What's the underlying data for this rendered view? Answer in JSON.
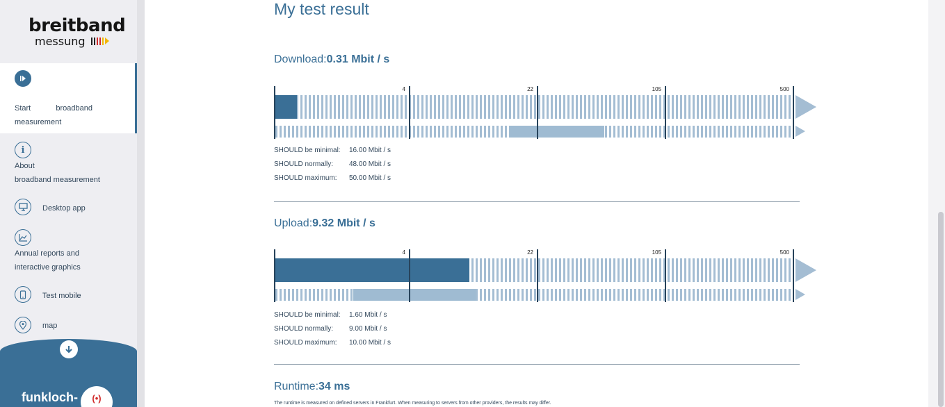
{
  "sidebar": {
    "logo": {
      "word1": "breitband",
      "word2": "messung"
    },
    "items": [
      {
        "label_a": "Start",
        "label_b": "broadband",
        "label_c": "measurement",
        "icon": "play-icon"
      },
      {
        "label_a": "About",
        "label_b": "broadband measurement",
        "icon": "info-icon"
      },
      {
        "label": "Desktop app",
        "icon": "monitor-icon"
      },
      {
        "label_a": "Annual reports and",
        "label_b": "interactive graphics",
        "icon": "chart-icon"
      },
      {
        "label": "Test mobile",
        "icon": "phone-icon"
      },
      {
        "label": "map",
        "icon": "map-pin-icon"
      }
    ],
    "bottom": {
      "funkloch": "funkloch-"
    }
  },
  "main": {
    "title": "My test result",
    "download": {
      "label": "Download:",
      "value": "0.31 Mbit / s",
      "should": [
        {
          "key": "SHOULD be minimal:",
          "val": "16.00 Mbit / s"
        },
        {
          "key": "SHOULD normally:",
          "val": "48.00 Mbit / s"
        },
        {
          "key": "SHOULD maximum:",
          "val": "50.00 Mbit / s"
        }
      ]
    },
    "upload": {
      "label": "Upload:",
      "value": "9.32 Mbit / s",
      "should": [
        {
          "key": "SHOULD be minimal:",
          "val": "1.60 Mbit / s"
        },
        {
          "key": "SHOULD normally:",
          "val": "9.00 Mbit / s"
        },
        {
          "key": "SHOULD maximum:",
          "val": "10.00 Mbit / s"
        }
      ]
    },
    "runtime": {
      "label": "Runtime:",
      "value": "34 ms",
      "note": "The runtime is measured on defined servers in Frankfurt. When measuring to servers from other providers, the results may differ."
    },
    "scale_ticks": [
      "4",
      "22",
      "105",
      "500"
    ]
  },
  "colors": {
    "accent": "#3a6f96",
    "stripe": "#a4bdd3",
    "range": "#9fbbd2",
    "divider": "#27435b"
  }
}
